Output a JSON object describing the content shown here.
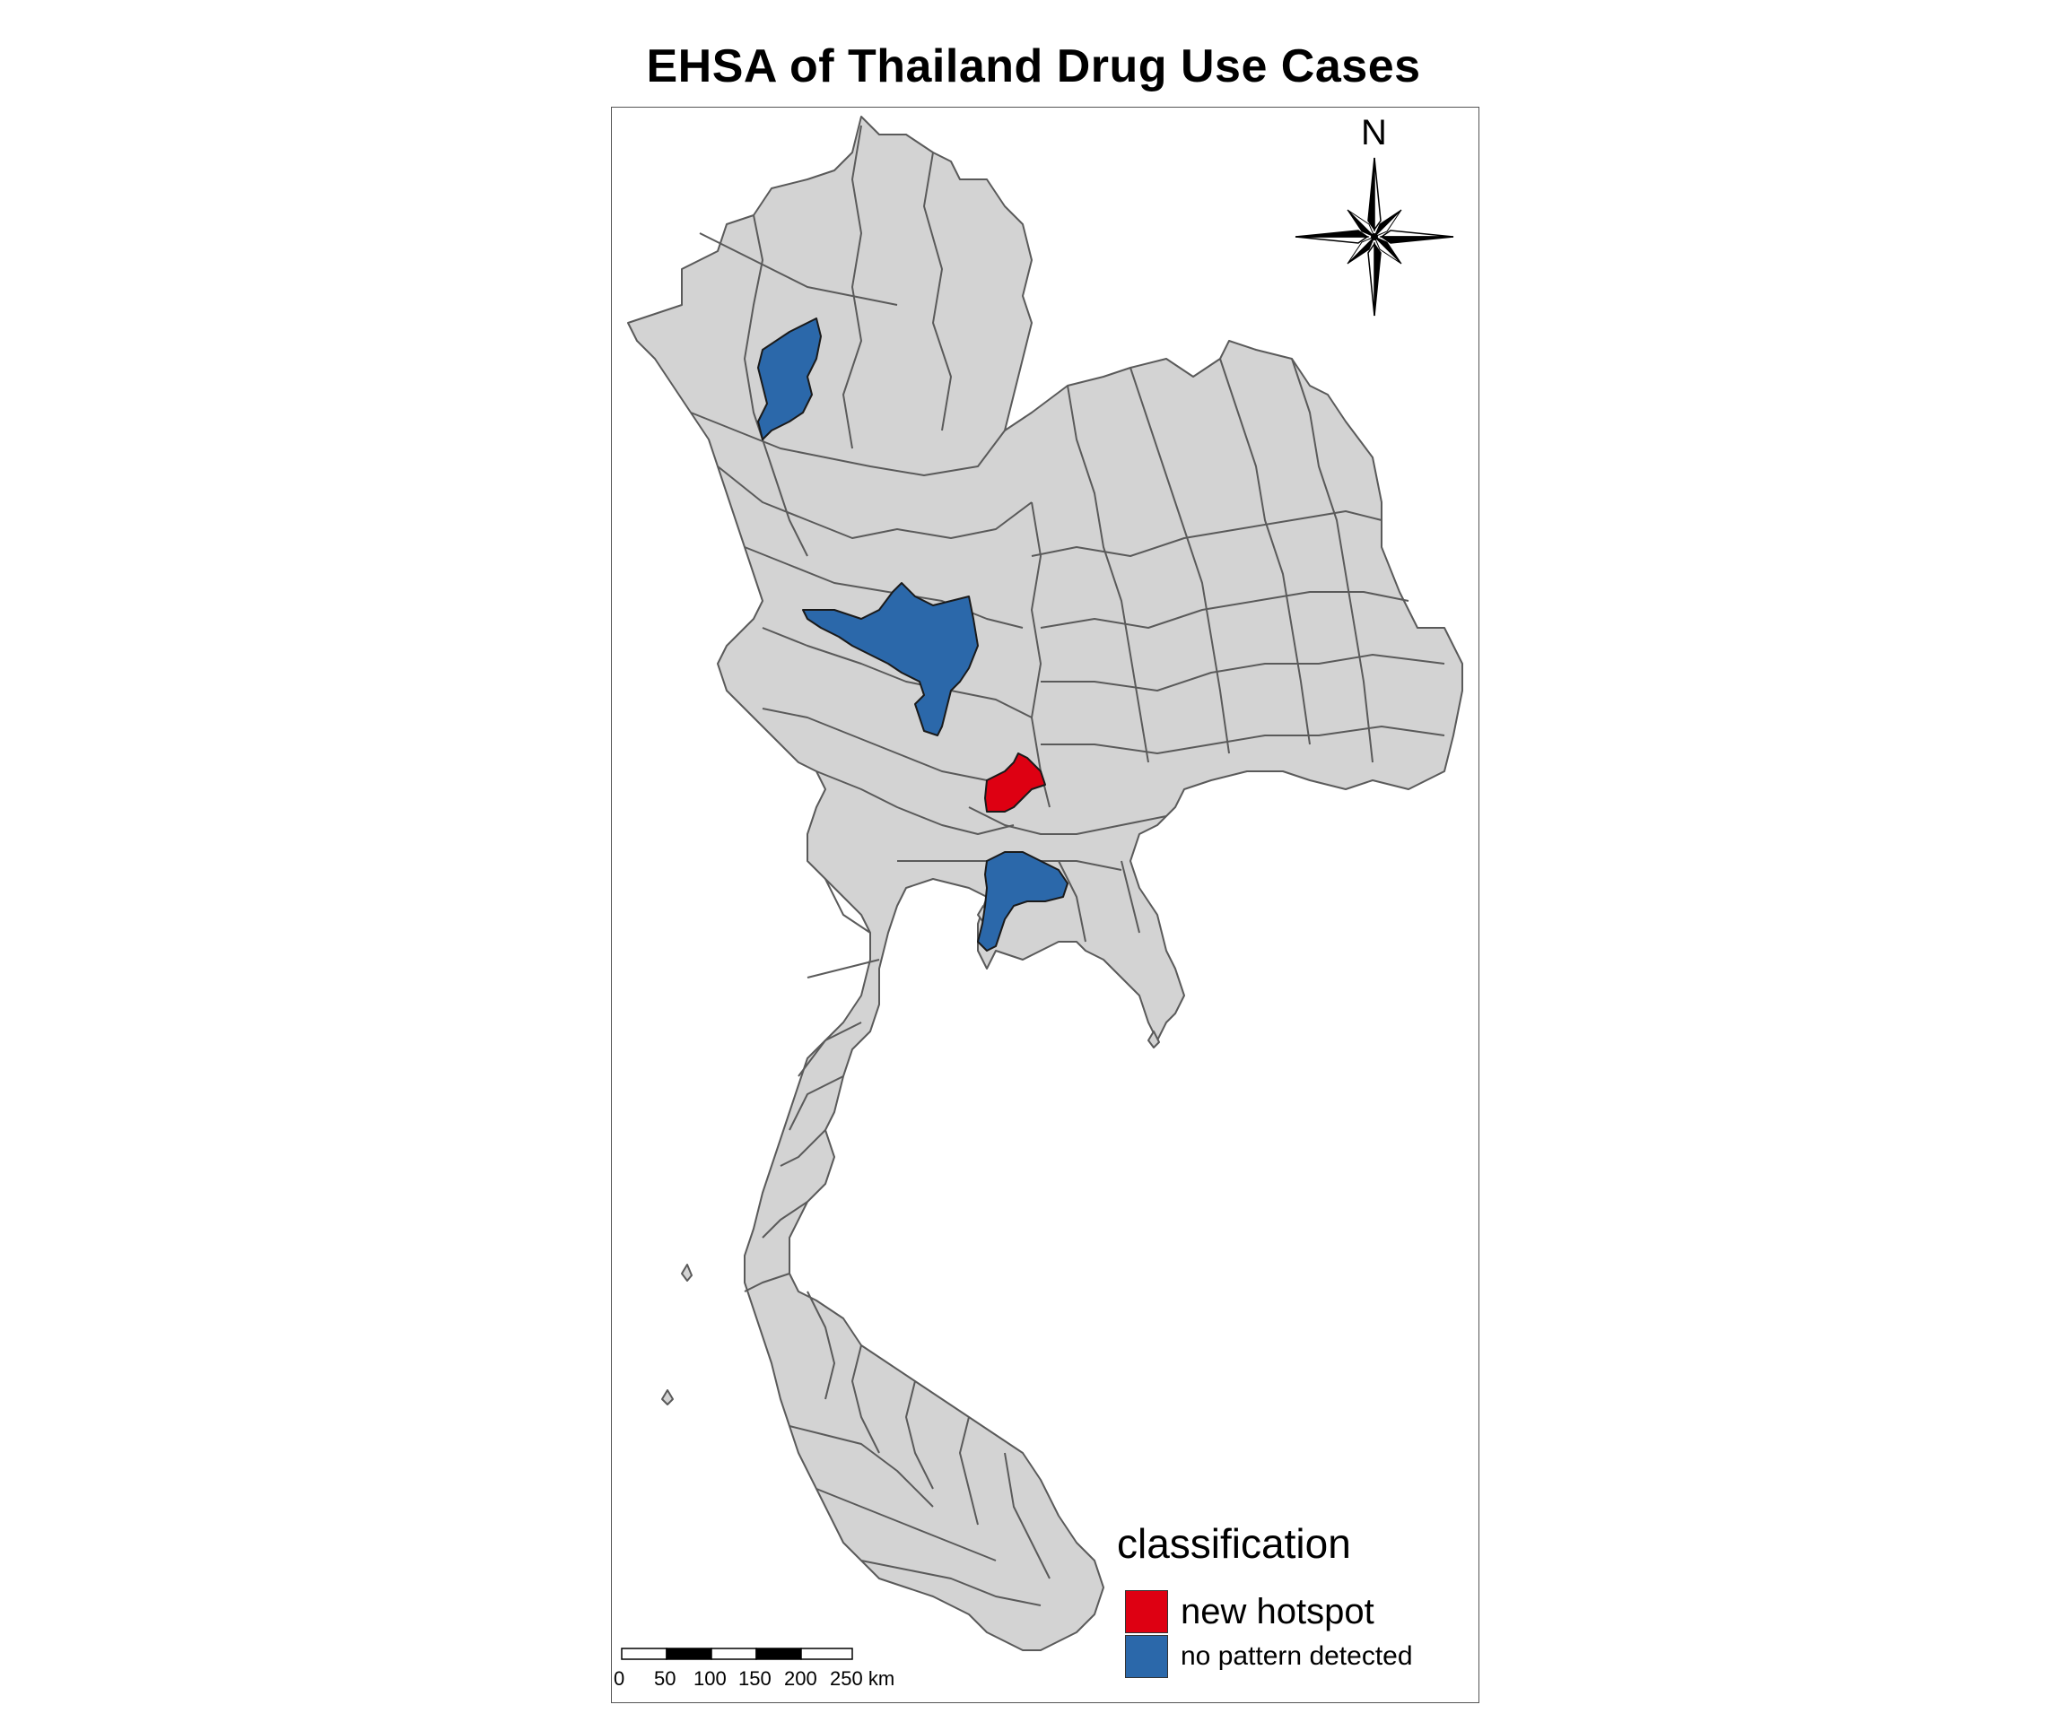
{
  "title": "EHSA of Thailand Drug Use Cases",
  "north_arrow": {
    "label": "N"
  },
  "legend": {
    "title": "classification",
    "items": [
      {
        "label": "new hotspot",
        "color": "#de0012"
      },
      {
        "label": "no pattern detected",
        "color": "#2b68aa"
      }
    ]
  },
  "scale_bar": {
    "ticks": [
      "0",
      "50",
      "100",
      "150",
      "200",
      "250 km"
    ]
  },
  "map": {
    "base_fill": "#d3d3d3",
    "border_color": "#5a5a5a",
    "regions": [
      {
        "name": "northern-province",
        "classification": "no pattern detected"
      },
      {
        "name": "central-province",
        "classification": "no pattern detected"
      },
      {
        "name": "eastern-province-hotspot",
        "classification": "new hotspot"
      },
      {
        "name": "eastern-coastal-province",
        "classification": "no pattern detected"
      }
    ]
  }
}
